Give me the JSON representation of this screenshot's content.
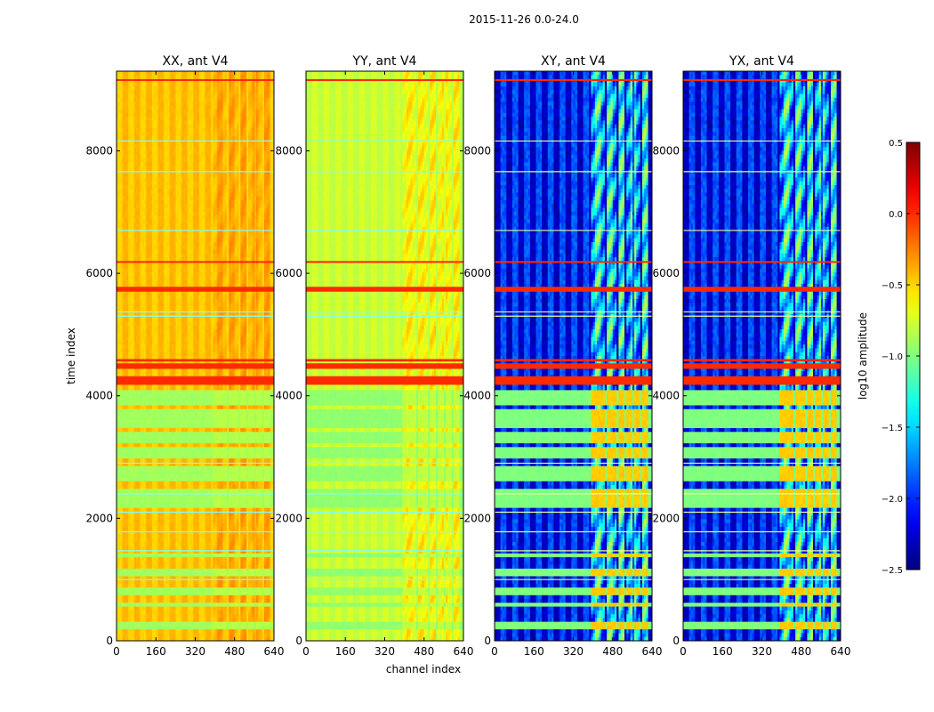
{
  "chart_data": {
    "type": "heatmap",
    "suptitle": "2015-11-26 0.0-24.0",
    "xlabel": "channel index",
    "ylabel": "time index",
    "xlim": [
      0,
      640
    ],
    "ylim": [
      0,
      9300
    ],
    "xticks": [
      0,
      160,
      320,
      480,
      640
    ],
    "yticks": [
      0,
      2000,
      4000,
      6000,
      8000
    ],
    "panels": [
      {
        "title": "XX, ant V4",
        "base": -0.45,
        "burst": 0.12,
        "stripe": 0.05,
        "lowband": -0.9
      },
      {
        "title": "YY, ant V4",
        "base": -0.78,
        "burst": 0.28,
        "stripe": 0.04,
        "lowband": -0.95
      },
      {
        "title": "XY, ant V4",
        "base": -2.1,
        "burst": 1.05,
        "stripe": 0.22,
        "lowband": -1.0
      },
      {
        "title": "YX, ant V4",
        "base": -2.1,
        "burst": 1.05,
        "stripe": 0.22,
        "lowband": -1.0
      }
    ],
    "burst_channels": [
      [
        395,
        420
      ],
      [
        425,
        450
      ],
      [
        460,
        495
      ],
      [
        505,
        530
      ],
      [
        540,
        560
      ],
      [
        565,
        590
      ],
      [
        600,
        625
      ]
    ],
    "low_bands": [
      [
        200,
        300
      ],
      [
        540,
        640
      ],
      [
        760,
        860
      ],
      [
        1050,
        1150
      ],
      [
        1340,
        1420
      ],
      [
        2200,
        2500
      ],
      [
        2600,
        2850
      ],
      [
        3000,
        3150
      ],
      [
        3250,
        3400
      ],
      [
        3450,
        3800
      ],
      [
        3830,
        4100
      ]
    ],
    "high_rows": [
      [
        4180,
        4320
      ],
      [
        4440,
        4530
      ],
      [
        4560,
        4600
      ],
      [
        5700,
        5780
      ],
      [
        6170,
        6200
      ],
      [
        9140,
        9170
      ]
    ],
    "light_rows": [
      1000,
      1470,
      1780,
      2100,
      2400,
      2900,
      5300,
      5370,
      6700,
      7660,
      8160
    ],
    "colorbar": {
      "label": "log10 amplitude",
      "range": [
        -2.5,
        0.5
      ],
      "ticks": [
        "0.5",
        "0.0",
        "−0.5",
        "−1.0",
        "−1.5",
        "−2.0",
        "−2.5"
      ],
      "colormap": "jet"
    }
  }
}
